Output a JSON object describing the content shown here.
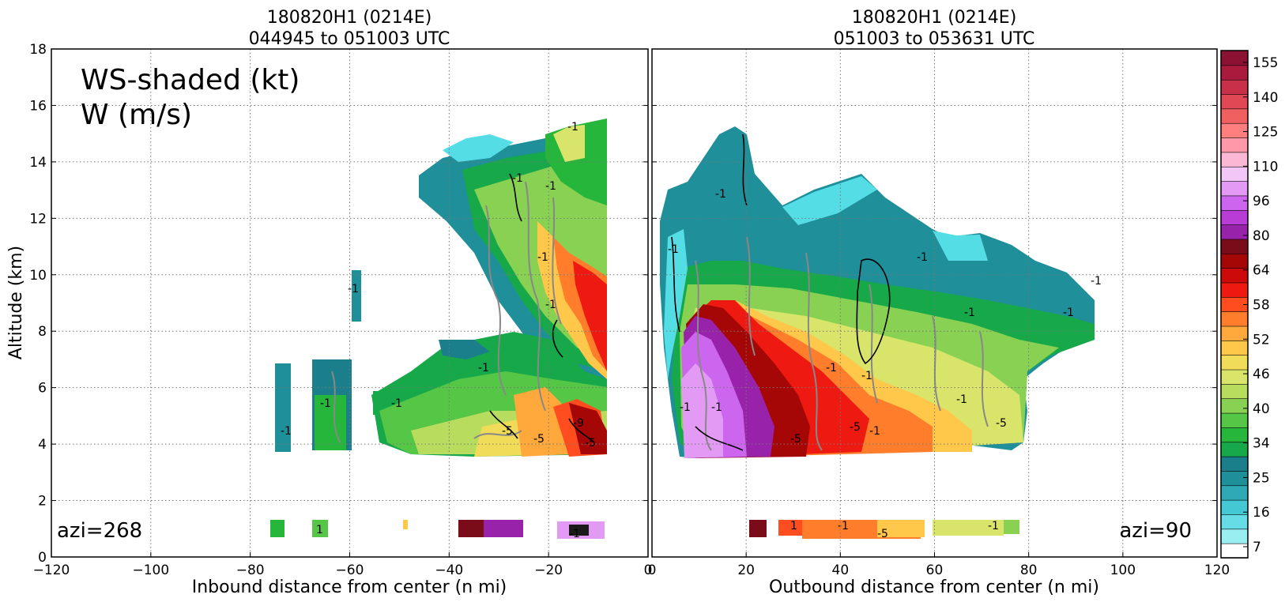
{
  "figure": {
    "ylabel": "Altitude (km)",
    "colorbar_ticks": [
      "155",
      "140",
      "125",
      "110",
      "96",
      "80",
      "64",
      "58",
      "52",
      "46",
      "40",
      "34",
      "25",
      "16",
      "7"
    ],
    "colorbar_colors": [
      "#ffffff",
      "#99eef2",
      "#66dde6",
      "#44c8d4",
      "#2fa9b5",
      "#1f8f99",
      "#1a7f8a",
      "#17a84a",
      "#27b63c",
      "#55c646",
      "#88d153",
      "#b8dc5e",
      "#d8e46a",
      "#f0dc58",
      "#ffc84a",
      "#ffa83c",
      "#ff7d2b",
      "#ff4d1f",
      "#ee1a12",
      "#cc0a0a",
      "#a50606",
      "#7a0b18",
      "#9922aa",
      "#b83cd6",
      "#cc66ee",
      "#e29af5",
      "#f3c6f8",
      "#fbb8d4",
      "#ff99aa",
      "#ff7f7f",
      "#f06060",
      "#e04856",
      "#c8304a",
      "#aa1a3c",
      "#8c1234"
    ]
  },
  "chart_data": [
    {
      "type": "heatmap",
      "title": [
        "180820H1 (0214E)",
        "044945 to 051003 UTC"
      ],
      "xlabel": "Inbound distance from center (n mi)",
      "ylabel": "Altitude (km)",
      "xlim": [
        -120,
        0
      ],
      "ylim": [
        0,
        18
      ],
      "x_ticks": [
        -120,
        -100,
        -80,
        -60,
        -40,
        -20,
        0
      ],
      "x_tick_labels": [
        "−120",
        "−100",
        "−80",
        "−60",
        "−40",
        "−20",
        "0"
      ],
      "y_ticks": [
        0,
        2,
        4,
        6,
        8,
        10,
        12,
        14,
        16,
        18
      ],
      "y_tick_labels": [
        "0",
        "2",
        "4",
        "6",
        "8",
        "10",
        "12",
        "14",
        "16",
        "18"
      ],
      "grid": true,
      "annotations": [
        "WS-shaded (kt)",
        "W (m/s)"
      ],
      "azimuth_label": "azi=268",
      "contour_labels": [
        "-1",
        "-1",
        "-1",
        "-1",
        "-1",
        "-1",
        "-1",
        "-1",
        "-1",
        "-1",
        "-5",
        "-5",
        "-9",
        "-5",
        "-1",
        "1"
      ]
    },
    {
      "type": "heatmap",
      "title": [
        "180820H1 (0214E)",
        "051003 to 053631 UTC"
      ],
      "xlabel": "Outbound distance from center (n mi)",
      "xlim": [
        0,
        120
      ],
      "ylim": [
        0,
        18
      ],
      "x_ticks": [
        0,
        20,
        40,
        60,
        80,
        100,
        120
      ],
      "x_tick_labels": [
        "0",
        "20",
        "40",
        "60",
        "80",
        "100",
        "120"
      ],
      "y_ticks": [
        0,
        2,
        4,
        6,
        8,
        10,
        12,
        14,
        16,
        18
      ],
      "grid": true,
      "azimuth_label": "azi=90",
      "contour_labels": [
        "-1",
        "-1",
        "-1",
        "-1",
        "-1",
        "-1",
        "-1",
        "-1",
        "-1",
        "-5",
        "-5",
        "-1",
        "-1",
        "-1",
        "-5",
        "-5",
        "-1",
        "-1",
        "1"
      ]
    }
  ]
}
